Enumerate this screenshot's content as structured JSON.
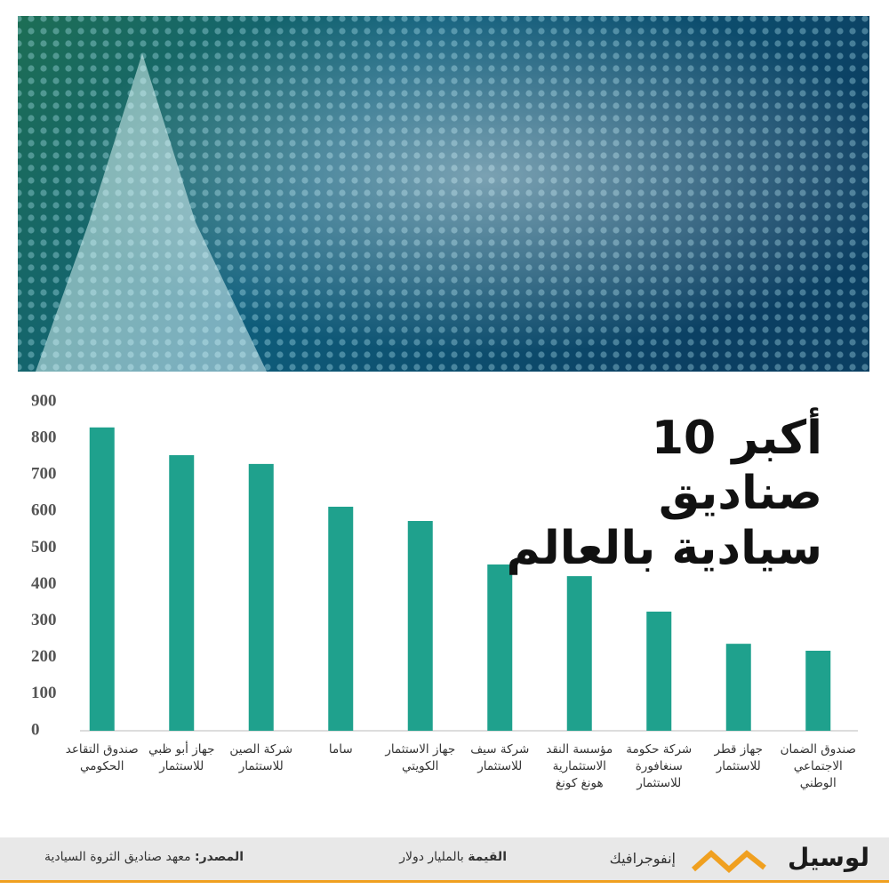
{
  "chart_data": {
    "type": "bar",
    "title": "أكبر 10 صناديق سيادية بالعالم",
    "categories": [
      "صندوق التقاعد الحكومي",
      "جهاز أبو ظبي للاستثمار",
      "شركة الصين للاستثمار",
      "ساما",
      "جهاز الاستثمار الكويتي",
      "شركة سيف للاستثمار",
      "مؤسسة النقد الاستثمارية هونغ كونغ",
      "شركة حكومة سنغافورة للاستثمار",
      "جهاز قطر للاستثمار",
      "صندوق الضمان الاجتماعي الوطني"
    ],
    "values": [
      830,
      754,
      730,
      613,
      574,
      455,
      423,
      326,
      238,
      219
    ],
    "color": "#1fa18d",
    "ylim": [
      0,
      900
    ],
    "yticks": [
      0,
      100,
      200,
      300,
      400,
      500,
      600,
      700,
      800,
      900
    ],
    "grid": false
  },
  "footer": {
    "logo": "لوسيل",
    "section": "إنفوجرافيك",
    "value_label": "القيمة",
    "value_text": "بالمليار دولار",
    "source_label": "المصدر:",
    "source_text": "معهد صناديق الثروة السيادية"
  }
}
